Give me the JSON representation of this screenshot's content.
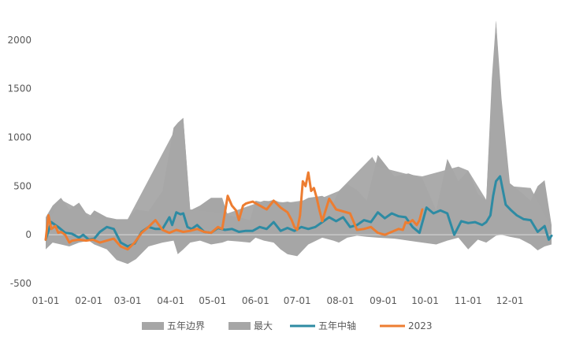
{
  "chart_data": {
    "type": "area",
    "title": "",
    "xlabel": "",
    "ylabel": "",
    "ylim": [
      -500,
      2250
    ],
    "y_ticks": [
      "2000",
      "1500",
      "1000",
      "500",
      "0",
      "-500"
    ],
    "x_ticks": [
      "01-01",
      "02-01",
      "03-01",
      "04-01",
      "05-01",
      "06-01",
      "07-01",
      "08-01",
      "09-01",
      "10-01",
      "11-01",
      "12-01"
    ],
    "grid": false,
    "legend_position": "bottom",
    "colors": {
      "band": "#a6a6a6",
      "max": "#a6a6a6",
      "median": "#2e8ba3",
      "y2023": "#ed7d31",
      "axis": "#d9d9d9",
      "text": "#595959"
    },
    "series": [
      {
        "name": "五年边界",
        "kind": "band",
        "x": [
          1,
          6,
          12,
          18,
          25,
          32,
          36,
          45,
          52,
          60,
          66,
          75,
          85,
          93,
          96,
          100,
          105,
          112,
          120,
          128,
          132,
          140,
          148,
          152,
          158,
          165,
          170,
          175,
          182,
          190,
          200,
          208,
          212,
          218,
          225,
          232,
          240,
          252,
          262,
          272,
          282,
          290,
          298,
          305,
          312,
          318,
          322,
          325,
          329,
          335,
          342,
          350,
          355,
          360,
          365
        ],
        "lower": [
          -150,
          -80,
          -100,
          -120,
          -80,
          -60,
          -100,
          -150,
          -260,
          -300,
          -250,
          -120,
          -80,
          -60,
          -200,
          -150,
          -80,
          -60,
          -100,
          -80,
          -60,
          -70,
          -80,
          -30,
          -60,
          -80,
          -150,
          -200,
          -220,
          -100,
          -30,
          -60,
          -80,
          -30,
          -10,
          -20,
          -30,
          -40,
          -60,
          -80,
          -100,
          -60,
          -30,
          -150,
          -50,
          -80,
          -40,
          -10,
          0,
          -20,
          -40,
          -100,
          -160,
          -120,
          -100
        ],
        "upper": [
          180,
          300,
          380,
          260,
          330,
          180,
          250,
          180,
          160,
          160,
          260,
          240,
          450,
          1100,
          1150,
          1200,
          250,
          300,
          380,
          380,
          200,
          180,
          150,
          350,
          330,
          360,
          330,
          340,
          320,
          380,
          400,
          330,
          450,
          520,
          460,
          350,
          820,
          600,
          630,
          580,
          250,
          780,
          550,
          660,
          420,
          350,
          1600,
          2200,
          1400,
          530,
          450,
          350,
          500,
          560,
          100
        ]
      },
      {
        "name": "最大",
        "kind": "area",
        "x": [
          1,
          6,
          12,
          20,
          36,
          50,
          60,
          93,
          96,
          100,
          105,
          132,
          158,
          175,
          200,
          212,
          236,
          240,
          262,
          272,
          298,
          305,
          318,
          322,
          325,
          329,
          335,
          350,
          365
        ],
        "values": [
          120,
          220,
          360,
          300,
          180,
          140,
          160,
          1050,
          1150,
          1200,
          260,
          220,
          350,
          330,
          380,
          450,
          800,
          700,
          620,
          600,
          700,
          660,
          360,
          1500,
          2200,
          1300,
          500,
          480,
          80
        ]
      },
      {
        "name": "五年中轴",
        "kind": "line",
        "x": [
          1,
          5,
          10,
          15,
          20,
          25,
          28,
          32,
          36,
          40,
          45,
          50,
          55,
          60,
          65,
          70,
          75,
          80,
          85,
          90,
          92,
          95,
          98,
          100,
          103,
          106,
          110,
          115,
          120,
          125,
          130,
          135,
          140,
          145,
          150,
          155,
          160,
          165,
          170,
          175,
          180,
          185,
          190,
          195,
          200,
          205,
          210,
          215,
          220,
          225,
          230,
          235,
          240,
          245,
          250,
          255,
          260,
          265,
          270,
          275,
          280,
          285,
          290,
          295,
          300,
          305,
          310,
          315,
          318,
          321,
          323,
          325,
          328,
          332,
          336,
          340,
          345,
          350,
          355,
          360,
          363,
          365
        ],
        "values": [
          -50,
          130,
          80,
          20,
          10,
          -30,
          0,
          -50,
          -40,
          30,
          80,
          60,
          -80,
          -120,
          -90,
          30,
          80,
          60,
          60,
          180,
          100,
          230,
          210,
          220,
          80,
          60,
          100,
          30,
          20,
          70,
          50,
          60,
          30,
          40,
          40,
          80,
          60,
          130,
          40,
          70,
          40,
          80,
          60,
          80,
          130,
          180,
          140,
          180,
          80,
          100,
          150,
          130,
          230,
          170,
          220,
          190,
          180,
          80,
          20,
          280,
          220,
          250,
          220,
          0,
          140,
          120,
          130,
          100,
          130,
          200,
          400,
          550,
          600,
          310,
          250,
          200,
          160,
          150,
          30,
          90,
          -50,
          -10
        ]
      },
      {
        "name": "2023",
        "kind": "line",
        "x": [
          1,
          3,
          5,
          8,
          10,
          12,
          15,
          18,
          20,
          25,
          30,
          35,
          40,
          45,
          50,
          55,
          60,
          65,
          70,
          75,
          80,
          85,
          90,
          95,
          100,
          105,
          110,
          115,
          120,
          125,
          128,
          132,
          135,
          138,
          140,
          143,
          145,
          147,
          150,
          155,
          160,
          165,
          170,
          175,
          178,
          180,
          182,
          184,
          186,
          188,
          190,
          192,
          194,
          196,
          198,
          200,
          205,
          210,
          215,
          220,
          225,
          230,
          235,
          240,
          245,
          250,
          255,
          258,
          260,
          262,
          265,
          268,
          270,
          272,
          275,
          278,
          280,
          282,
          285,
          288,
          290,
          295,
          300,
          305,
          310,
          315,
          320,
          325,
          330,
          335,
          340,
          345,
          350,
          355,
          360,
          365
        ],
        "values": [
          -50,
          200,
          60,
          90,
          20,
          30,
          0,
          -80,
          -60,
          -50,
          -60,
          -50,
          -80,
          -60,
          -40,
          -120,
          -150,
          -80,
          20,
          80,
          150,
          50,
          20,
          50,
          30,
          40,
          60,
          30,
          20,
          80,
          60,
          400,
          300,
          250,
          150,
          300,
          320,
          330,
          340,
          300,
          260,
          350,
          280,
          230,
          150,
          80,
          50,
          200,
          550,
          500,
          640,
          450,
          480,
          380,
          250,
          140,
          370,
          260,
          240,
          220,
          50,
          60,
          80,
          20,
          0,
          30,
          60,
          50,
          130,
          120,
          150,
          100,
          150,
          260,
          null,
          null,
          null,
          null,
          null,
          null,
          null,
          null,
          null,
          null,
          null,
          null,
          null,
          null,
          null,
          null,
          null,
          null,
          null,
          null,
          null,
          null
        ]
      }
    ]
  }
}
